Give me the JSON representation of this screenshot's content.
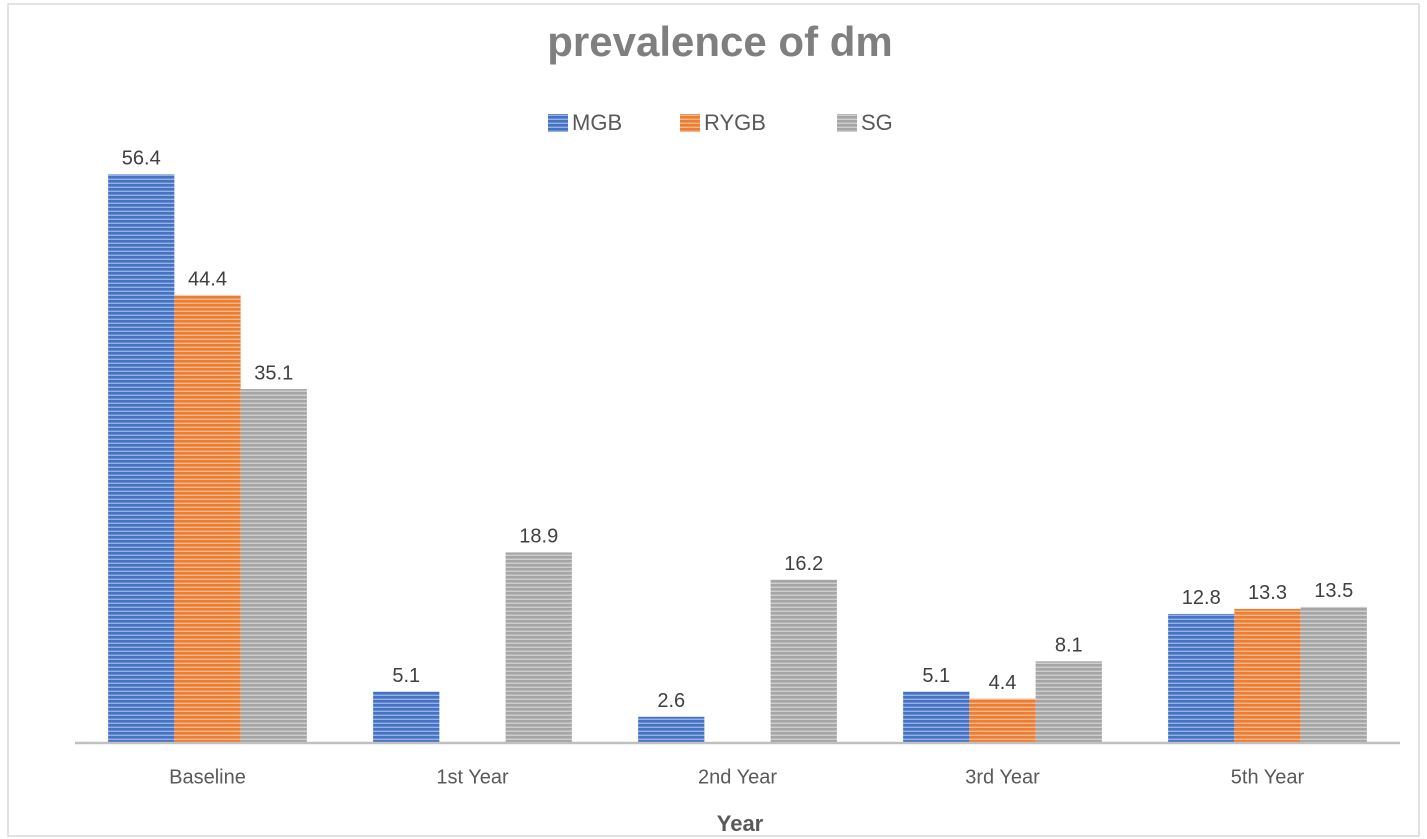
{
  "chart_data": {
    "type": "bar",
    "title": "prevalence of dm",
    "x_label": "Year",
    "categories": [
      "Baseline",
      "1st Year",
      "2nd Year",
      "3rd Year",
      "5th Year"
    ],
    "series": [
      {
        "name": "MGB",
        "color": "#4472c4",
        "values": [
          56.4,
          5.1,
          2.6,
          5.1,
          12.8
        ]
      },
      {
        "name": "RYGB",
        "color": "#ed7d31",
        "values": [
          44.4,
          null,
          null,
          4.4,
          13.3
        ]
      },
      {
        "name": "SG",
        "color": "#a5a5a5",
        "values": [
          35.1,
          18.9,
          16.2,
          8.1,
          13.5
        ]
      }
    ],
    "ylim": [
      0,
      60
    ],
    "legend": "top",
    "grid": false
  }
}
